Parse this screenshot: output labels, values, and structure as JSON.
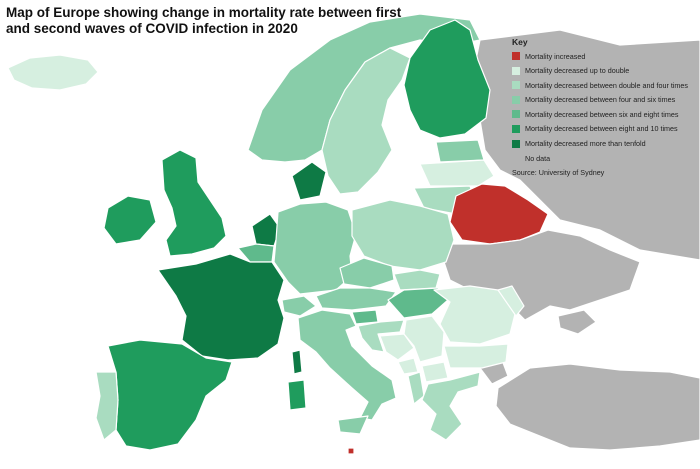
{
  "title": "Map of Europe showing change in mortality rate between first and second waves of COVID infection in 2020",
  "legend": {
    "title": "Key",
    "items": [
      {
        "label": "Mortality increased",
        "color": "#c0302b"
      },
      {
        "label": "Mortality decreased up to double",
        "color": "#d6efe0"
      },
      {
        "label": "Mortality decreased between double and four times",
        "color": "#a9dcc0"
      },
      {
        "label": "Mortality decreased between four and six times",
        "color": "#88cda9"
      },
      {
        "label": "Mortality decreased between six and eight times",
        "color": "#5fba8c"
      },
      {
        "label": "Mortality decreased between eight and 10 times",
        "color": "#1f9c5d"
      },
      {
        "label": "Mortality decreased more than tenfold",
        "color": "#0e7a45"
      },
      {
        "label": "No data",
        "color": "#b3b3b3"
      }
    ],
    "source": "Source: University of Sydney"
  },
  "regions": [
    {
      "name": "Iceland",
      "category": "Mortality decreased up to double"
    },
    {
      "name": "Norway",
      "category": "Mortality decreased between four and six times"
    },
    {
      "name": "Sweden",
      "category": "Mortality decreased between double and four times"
    },
    {
      "name": "Finland",
      "category": "Mortality decreased between eight and 10 times"
    },
    {
      "name": "Estonia",
      "category": "Mortality decreased between four and six times"
    },
    {
      "name": "Latvia",
      "category": "Mortality decreased up to double"
    },
    {
      "name": "Lithuania",
      "category": "Mortality decreased between double and four times"
    },
    {
      "name": "Belarus",
      "category": "Mortality increased"
    },
    {
      "name": "Ukraine",
      "category": "No data"
    },
    {
      "name": "Russia",
      "category": "No data"
    },
    {
      "name": "Turkey",
      "category": "No data"
    },
    {
      "name": "Denmark",
      "category": "Mortality decreased more than tenfold"
    },
    {
      "name": "Ireland",
      "category": "Mortality decreased between eight and 10 times"
    },
    {
      "name": "United Kingdom",
      "category": "Mortality decreased between eight and 10 times"
    },
    {
      "name": "Netherlands",
      "category": "Mortality decreased more than tenfold"
    },
    {
      "name": "Belgium",
      "category": "Mortality decreased between six and eight times"
    },
    {
      "name": "France",
      "category": "Mortality decreased more than tenfold"
    },
    {
      "name": "Spain",
      "category": "Mortality decreased between eight and 10 times"
    },
    {
      "name": "Portugal",
      "category": "Mortality decreased between double and four times"
    },
    {
      "name": "Germany",
      "category": "Mortality decreased between four and six times"
    },
    {
      "name": "Poland",
      "category": "Mortality decreased between double and four times"
    },
    {
      "name": "Czechia",
      "category": "Mortality decreased between four and six times"
    },
    {
      "name": "Slovakia",
      "category": "Mortality decreased between double and four times"
    },
    {
      "name": "Austria",
      "category": "Mortality decreased between four and six times"
    },
    {
      "name": "Switzerland",
      "category": "Mortality decreased between four and six times"
    },
    {
      "name": "Hungary",
      "category": "Mortality decreased between six and eight times"
    },
    {
      "name": "Italy",
      "category": "Mortality decreased between four and six times"
    },
    {
      "name": "Corsica",
      "category": "Mortality decreased more than tenfold"
    },
    {
      "name": "Sardinia",
      "category": "Mortality decreased between eight and 10 times"
    },
    {
      "name": "Slovenia",
      "category": "Mortality decreased between six and eight times"
    },
    {
      "name": "Croatia",
      "category": "Mortality decreased between double and four times"
    },
    {
      "name": "Bosnia",
      "category": "Mortality decreased up to double"
    },
    {
      "name": "Serbia",
      "category": "Mortality decreased up to double"
    },
    {
      "name": "Romania",
      "category": "Mortality decreased up to double"
    },
    {
      "name": "Moldova",
      "category": "Mortality decreased up to double"
    },
    {
      "name": "Bulgaria",
      "category": "Mortality decreased up to double"
    },
    {
      "name": "Montenegro",
      "category": "Mortality decreased up to double"
    },
    {
      "name": "Albania",
      "category": "Mortality decreased between double and four times"
    },
    {
      "name": "North Macedonia",
      "category": "Mortality decreased up to double"
    },
    {
      "name": "Greece",
      "category": "Mortality decreased between double and four times"
    },
    {
      "name": "Malta",
      "category": "Mortality increased"
    }
  ]
}
